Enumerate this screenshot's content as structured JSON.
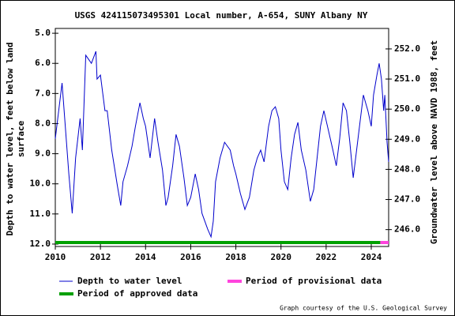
{
  "chart_data": {
    "type": "line",
    "title": "USGS 424115073495301 Local number, A-654, SUNY Albany NY",
    "y_label": [
      "Depth to water level, feet below land",
      "surface"
    ],
    "y2_label": "Groundwater level above NAVD 1988, feet",
    "credit": "Graph courtesy of the U.S. Geological Survey",
    "xlim": [
      2010,
      2024.77
    ],
    "xticks": [
      2010,
      2012,
      2014,
      2016,
      2018,
      2020,
      2022,
      2024
    ],
    "ylim": [
      4.84,
      12.08
    ],
    "y_inverted": true,
    "yticks": [
      {
        "value": 5,
        "label": "5.0"
      },
      {
        "value": 6,
        "label": "6.0"
      },
      {
        "value": 7,
        "label": "7.0"
      },
      {
        "value": 8,
        "label": "8.0"
      },
      {
        "value": 9,
        "label": "9.0"
      },
      {
        "value": 10,
        "label": "10.0"
      },
      {
        "value": 11,
        "label": "11.0"
      },
      {
        "value": 12,
        "label": "12.0"
      }
    ],
    "y2lim": [
      252.68,
      245.44
    ],
    "y2ticks": [
      {
        "value": 246,
        "label": "246.0"
      },
      {
        "value": 247,
        "label": "247.0"
      },
      {
        "value": 248,
        "label": "248.0"
      },
      {
        "value": 249,
        "label": "249.0"
      },
      {
        "value": 250,
        "label": "250.0"
      },
      {
        "value": 251,
        "label": "251.0"
      },
      {
        "value": 252,
        "label": "252.0"
      }
    ],
    "series": [
      {
        "name": "Depth to water level",
        "color": "#0000cc",
        "x": [
          2010.0,
          2010.3,
          2010.6,
          2010.75,
          2010.9,
          2011.1,
          2011.2,
          2011.3,
          2011.35,
          2011.6,
          2011.8,
          2011.85,
          2012.0,
          2012.2,
          2012.3,
          2012.5,
          2012.75,
          2012.9,
          2013.0,
          2013.2,
          2013.4,
          2013.55,
          2013.75,
          2013.9,
          2014.0,
          2014.2,
          2014.4,
          2014.55,
          2014.75,
          2014.9,
          2015.0,
          2015.2,
          2015.35,
          2015.5,
          2015.7,
          2015.85,
          2016.0,
          2016.2,
          2016.35,
          2016.5,
          2016.75,
          2016.9,
          2017.0,
          2017.1,
          2017.3,
          2017.5,
          2017.75,
          2017.9,
          2018.0,
          2018.2,
          2018.4,
          2018.6,
          2018.8,
          2018.95,
          2019.1,
          2019.25,
          2019.45,
          2019.6,
          2019.75,
          2019.9,
          2020.0,
          2020.15,
          2020.3,
          2020.45,
          2020.6,
          2020.75,
          2020.9,
          2021.1,
          2021.3,
          2021.45,
          2021.6,
          2021.75,
          2021.9,
          2022.1,
          2022.3,
          2022.45,
          2022.6,
          2022.75,
          2022.9,
          2023.05,
          2023.2,
          2023.35,
          2023.5,
          2023.65,
          2023.85,
          2024.0,
          2024.1,
          2024.25,
          2024.35,
          2024.45,
          2024.55,
          2024.6,
          2024.7,
          2024.77
        ],
        "values": [
          8.5,
          6.65,
          9.67,
          10.98,
          9.14,
          7.83,
          8.88,
          6.78,
          5.73,
          6.0,
          5.6,
          6.52,
          6.39,
          7.57,
          7.57,
          8.88,
          10.06,
          10.72,
          9.93,
          9.4,
          8.75,
          8.09,
          7.31,
          7.83,
          8.09,
          9.14,
          7.83,
          8.62,
          9.54,
          10.72,
          10.45,
          9.4,
          8.36,
          8.75,
          9.8,
          10.72,
          10.45,
          9.67,
          10.19,
          10.98,
          11.5,
          11.76,
          11.24,
          9.93,
          9.14,
          8.62,
          8.88,
          9.4,
          9.67,
          10.32,
          10.85,
          10.45,
          9.54,
          9.14,
          8.88,
          9.27,
          8.09,
          7.57,
          7.44,
          7.83,
          8.88,
          9.93,
          10.19,
          9.14,
          8.36,
          7.96,
          8.88,
          9.54,
          10.58,
          10.19,
          9.14,
          8.09,
          7.57,
          8.22,
          8.88,
          9.4,
          8.5,
          7.31,
          7.57,
          8.62,
          9.8,
          8.88,
          7.96,
          7.05,
          7.57,
          8.09,
          7.05,
          6.39,
          6.0,
          6.52,
          7.57,
          7.05,
          8.62,
          9.27
        ]
      }
    ],
    "periods": [
      {
        "name": "Period of approved data",
        "color": "#00a000",
        "start": 2010,
        "end": 2024.4
      },
      {
        "name": "Period of provisional data",
        "color": "#ff44dd",
        "start": 2024.4,
        "end": 2024.77
      }
    ]
  }
}
